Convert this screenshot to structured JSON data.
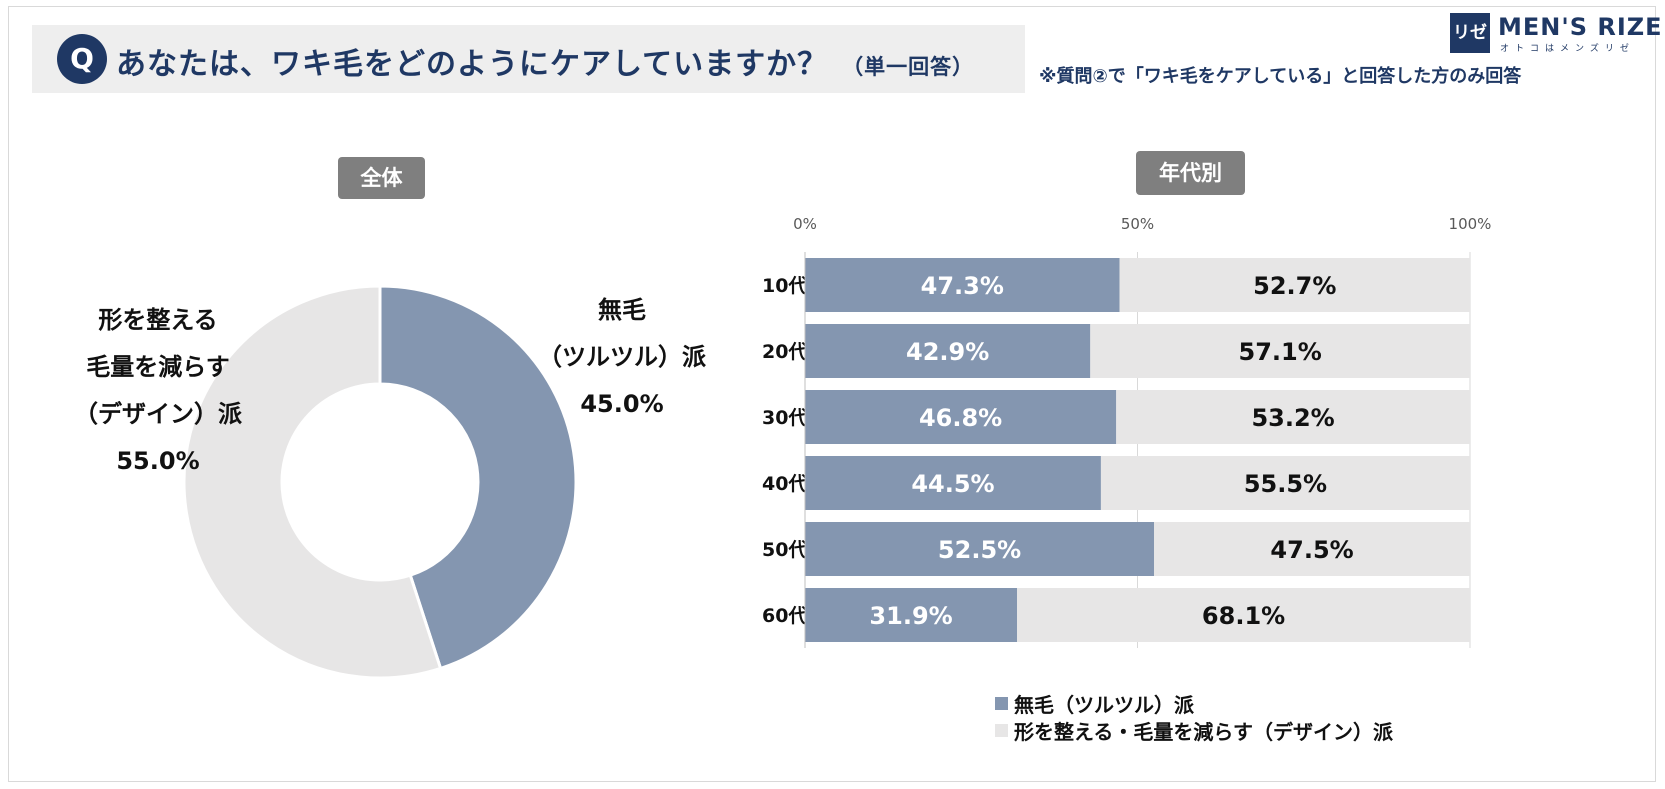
{
  "header": {
    "q_mark": "Q",
    "question": "あなたは、ワキ毛をどのようにケアしていますか？",
    "question_sub": "（単一回答）",
    "note": "※質問②で「ワキ毛をケアしている」と回答した方のみ回答"
  },
  "logo": {
    "mark": "リゼ",
    "name": "MEN'S RIZE",
    "tagline": "オトコはメンズリゼ"
  },
  "colors": {
    "hairless": "#8496b0",
    "design": "#e7e6e6",
    "accent": "#1f3864",
    "tag_bg": "#7f7f7f"
  },
  "chart_data": [
    {
      "type": "pie",
      "title": "全体",
      "donut": true,
      "labels": [
        "無毛（ツルツル）派",
        "形を整える毛量を減らす（デザイン）派"
      ],
      "values": [
        45.0,
        55.0
      ],
      "label_lines": {
        "hairless": [
          "無毛",
          "（ツルツル）派",
          "45.0%"
        ],
        "design": [
          "形を整える",
          "毛量を減らす",
          "（デザイン）派",
          "55.0%"
        ]
      }
    },
    {
      "type": "bar",
      "orientation": "horizontal",
      "stacked": true,
      "title": "年代別",
      "categories": [
        "10代",
        "20代",
        "30代",
        "40代",
        "50代",
        "60代"
      ],
      "series": [
        {
          "name": "無毛（ツルツル）派",
          "values": [
            47.3,
            42.9,
            46.8,
            44.5,
            52.5,
            31.9
          ]
        },
        {
          "name": "形を整える・毛量を減らす（デザイン）派",
          "values": [
            52.7,
            57.1,
            53.2,
            55.5,
            47.5,
            68.1
          ]
        }
      ],
      "data_labels": {
        "hairless": [
          "47.3%",
          "42.9%",
          "46.8%",
          "44.5%",
          "52.5%",
          "31.9%"
        ],
        "design": [
          "52.7%",
          "57.1%",
          "53.2%",
          "55.5%",
          "47.5%",
          "68.1%"
        ]
      },
      "xlim": [
        0,
        100
      ],
      "x_ticks": [
        "0%",
        "50%",
        "100%"
      ],
      "grid": true,
      "legend_position": "bottom"
    }
  ]
}
